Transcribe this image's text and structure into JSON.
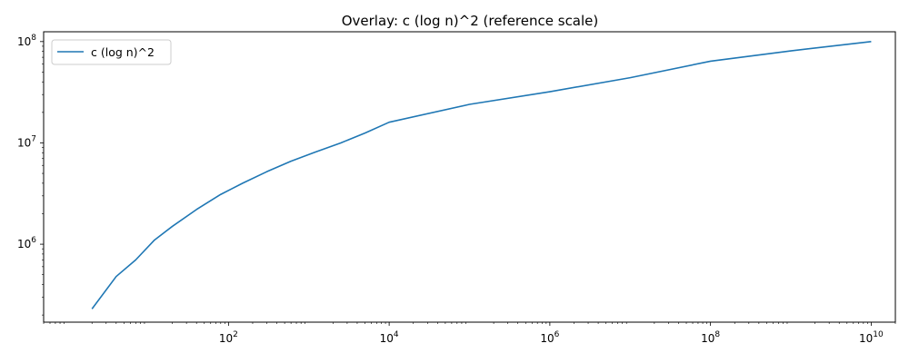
{
  "chart_data": {
    "type": "line",
    "title": "Overlay: c (log n)^2 (reference scale)",
    "xlabel": "",
    "ylabel": "",
    "xscale": "log",
    "yscale": "log",
    "xlim": [
      0.5,
      20000000000
    ],
    "ylim": [
      170000,
      125000000
    ],
    "x_ticks": [
      {
        "value": 100,
        "base": "10",
        "exp": "2"
      },
      {
        "value": 10000,
        "base": "10",
        "exp": "4"
      },
      {
        "value": 1000000,
        "base": "10",
        "exp": "6"
      },
      {
        "value": 100000000,
        "base": "10",
        "exp": "8"
      },
      {
        "value": 10000000000,
        "base": "10",
        "exp": "10"
      }
    ],
    "y_ticks": [
      {
        "value": 1000000,
        "base": "10",
        "exp": "6"
      },
      {
        "value": 10000000,
        "base": "10",
        "exp": "7"
      },
      {
        "value": 100000000,
        "base": "10",
        "exp": "8"
      }
    ],
    "grid": false,
    "legend_position": "top-left",
    "series": [
      {
        "name": "c (log n)^2",
        "color": "#1f77b4",
        "x": [
          2,
          4,
          7,
          12,
          20,
          40,
          80,
          150,
          300,
          600,
          1200,
          2500,
          5000,
          10000,
          100000,
          1000000,
          10000000,
          100000000,
          1000000000,
          10000000000
        ],
        "y": [
          230000,
          480000,
          700000,
          1100000,
          1500000,
          2200000,
          3100000,
          4000000,
          5200000,
          6600000,
          8100000,
          10000000,
          12500000,
          16000000,
          24000000,
          32000000,
          44000000,
          64000000,
          81000000,
          100000000
        ]
      }
    ]
  }
}
